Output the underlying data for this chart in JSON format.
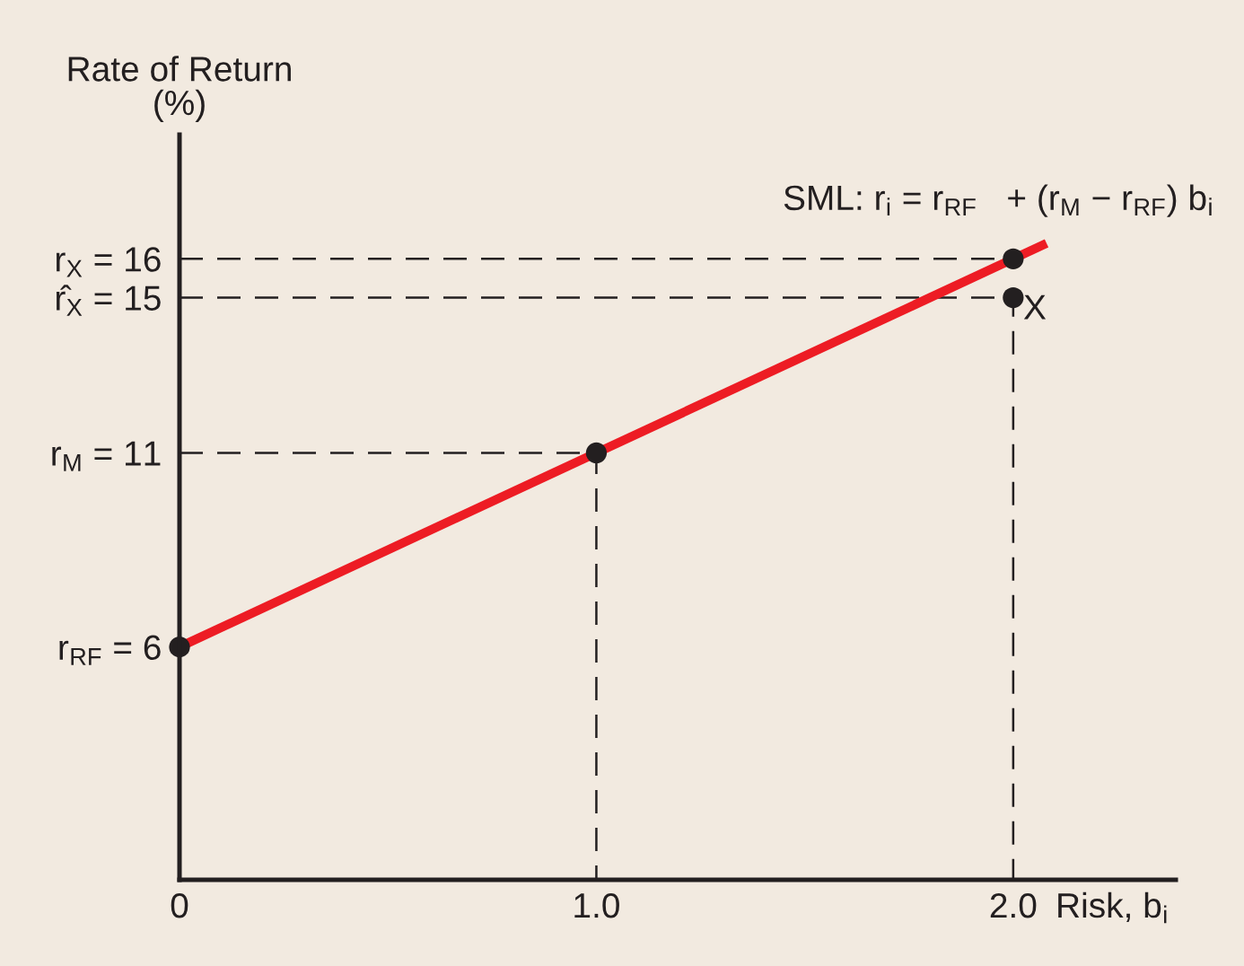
{
  "chart_data": {
    "type": "line",
    "xlabel": "Risk, b$_{i}$",
    "ylabel": "Rate of Return\n(%)",
    "annotations": [
      "SML: r$_{i}$ = r$_{RF}$   + (r$_{M}$ − r$_{RF}$) b$_{i}$",
      {
        "text": "X",
        "x": 2,
        "y": 15
      }
    ],
    "xlim": [
      0,
      2.39
    ],
    "xticks": [
      0,
      {
        "value": 1,
        "label": "1.0"
      },
      {
        "value": 2,
        "label": "2.0"
      }
    ],
    "ylim": [
      0,
      19.2
    ],
    "yticks": [
      {
        "value": 6,
        "label": "r$_{RF}$ = 6"
      },
      {
        "value": 11,
        "label": "r$_{M}$ = 11"
      },
      {
        "value": 15,
        "label": "r̂$_{X}$ = 15"
      },
      {
        "value": 16,
        "label": "r$_{X}$ = 16"
      }
    ],
    "series": [
      {
        "line_style": "dashed",
        "color": "#231f20",
        "x": [
          0,
          2,
          2
        ],
        "values": [
          15,
          15,
          0
        ]
      },
      {
        "line_style": "dashed",
        "color": "#231f20",
        "x": [
          0,
          2
        ],
        "values": [
          16,
          16
        ]
      },
      {
        "line_style": "dashed",
        "color": "#231f20",
        "x": [
          0,
          1,
          1
        ],
        "values": [
          11,
          11,
          0
        ]
      },
      {
        "line_style": "solid",
        "color": "#ed1c24",
        "x": [
          0,
          2.08
        ],
        "values": [
          6,
          16.4
        ]
      },
      {
        "type": "scatter",
        "marker": "circle",
        "color": "#231f20",
        "x": [
          0,
          1,
          2,
          2
        ],
        "values": [
          6,
          11,
          16,
          15
        ]
      }
    ]
  }
}
